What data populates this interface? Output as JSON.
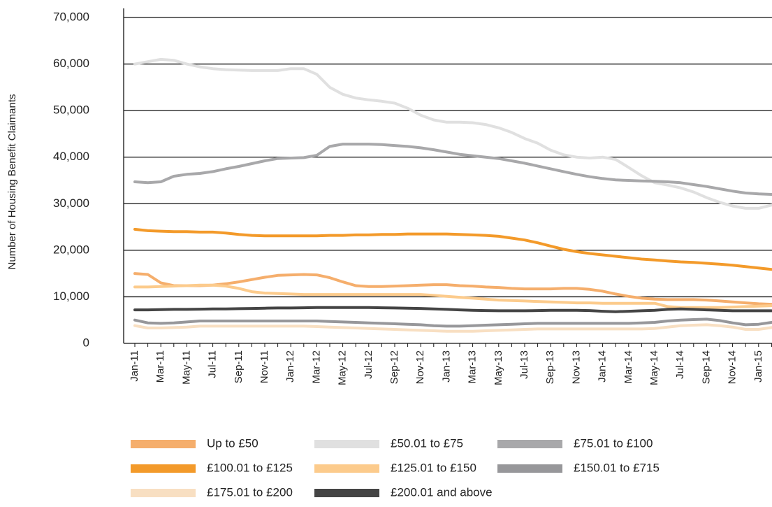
{
  "chart_data": {
    "type": "line",
    "y_label": "Number of Housing Benefit Claimants",
    "categories": [
      "Jan-11",
      null,
      "Mar-11",
      null,
      "May-11",
      null,
      "Jul-11",
      null,
      "Sep-11",
      null,
      "Nov-11",
      null,
      "Jan-12",
      null,
      "Mar-12",
      null,
      "May-12",
      null,
      "Jul-12",
      null,
      "Sep-12",
      null,
      "Nov-12",
      null,
      "Jan-13",
      null,
      "Mar-13",
      null,
      "May-13",
      null,
      "Jul-13",
      null,
      "Sep-13",
      null,
      "Nov-13",
      null,
      "Jan-14",
      null,
      "Mar-14",
      null,
      "May-14",
      null,
      "Jul-14",
      null,
      "Sep-14",
      null,
      "Nov-14",
      null,
      "Jan-15",
      null
    ],
    "ylim": [
      0,
      70000
    ],
    "yticks": [
      0,
      {
        "value": 10000,
        "label": "10,000"
      },
      {
        "value": 20000,
        "label": "20,000"
      },
      {
        "value": 30000,
        "label": "30,000"
      },
      {
        "value": 40000,
        "label": "40,000"
      },
      {
        "value": 50000,
        "label": "50,000"
      },
      {
        "value": 60000,
        "label": "60,000"
      },
      {
        "value": 70000,
        "label": "70,000"
      }
    ],
    "grid": true,
    "series": [
      {
        "name": "Up to £50",
        "color": "#f5ae6c",
        "values": [
          15000,
          14800,
          13000,
          12400,
          12400,
          12400,
          12500,
          12800,
          13200,
          13700,
          14200,
          14600,
          14700,
          14800,
          14700,
          14100,
          13200,
          12400,
          12200,
          12200,
          12300,
          12400,
          12500,
          12600,
          12600,
          12400,
          12300,
          12100,
          12000,
          11800,
          11700,
          11700,
          11700,
          11800,
          11800,
          11600,
          11200,
          10600,
          10100,
          9700,
          9500,
          9400,
          9400,
          9400,
          9300,
          9100,
          8900,
          8700,
          8500,
          8400
        ]
      },
      {
        "name": "£50.01 to £75",
        "color": "#e0e0e0",
        "values": [
          60000,
          60500,
          61000,
          60800,
          60000,
          59400,
          59000,
          58800,
          58700,
          58600,
          58600,
          58600,
          59000,
          59000,
          57800,
          55000,
          53500,
          52700,
          52300,
          52000,
          51600,
          50500,
          49000,
          48000,
          47500,
          47500,
          47400,
          47000,
          46300,
          45300,
          44000,
          43000,
          41500,
          40500,
          40000,
          39800,
          40000,
          39500,
          37800,
          36000,
          34500,
          34000,
          33400,
          32500,
          31300,
          30300,
          29500,
          29000,
          29000,
          29700
        ]
      },
      {
        "name": "£75.01 to £100",
        "color": "#a8a8aa",
        "values": [
          34700,
          34500,
          34700,
          35900,
          36300,
          36500,
          36900,
          37500,
          38000,
          38600,
          39200,
          39700,
          39800,
          39900,
          40400,
          42300,
          42800,
          42800,
          42800,
          42700,
          42500,
          42300,
          42000,
          41600,
          41100,
          40600,
          40300,
          40000,
          39700,
          39200,
          38700,
          38100,
          37500,
          36900,
          36300,
          35800,
          35400,
          35100,
          35000,
          34900,
          34800,
          34700,
          34500,
          34100,
          33700,
          33200,
          32700,
          32300,
          32100,
          32000
        ]
      },
      {
        "name": "£100.01 to £125",
        "color": "#f39a2a",
        "values": [
          24500,
          24200,
          24100,
          24000,
          24000,
          23900,
          23900,
          23700,
          23400,
          23200,
          23100,
          23100,
          23100,
          23100,
          23100,
          23200,
          23200,
          23300,
          23300,
          23400,
          23400,
          23500,
          23500,
          23500,
          23500,
          23400,
          23300,
          23200,
          23000,
          22600,
          22200,
          21600,
          20900,
          20200,
          19700,
          19300,
          19000,
          18700,
          18400,
          18100,
          17900,
          17700,
          17500,
          17400,
          17200,
          17000,
          16800,
          16500,
          16200,
          15900
        ]
      },
      {
        "name": "£125.01 to £150",
        "color": "#fccb8c",
        "values": [
          12100,
          12100,
          12200,
          12300,
          12400,
          12500,
          12500,
          12300,
          11800,
          11100,
          10800,
          10700,
          10600,
          10500,
          10500,
          10500,
          10500,
          10500,
          10500,
          10500,
          10500,
          10500,
          10500,
          10300,
          10100,
          9900,
          9700,
          9500,
          9300,
          9200,
          9100,
          9000,
          8900,
          8800,
          8700,
          8700,
          8600,
          8600,
          8600,
          8600,
          8600,
          7900,
          7700,
          7700,
          7700,
          7700,
          7800,
          7900,
          8000,
          8100
        ]
      },
      {
        "name": "£150.01 to £715",
        "color": "#97979a",
        "values": [
          5000,
          4400,
          4300,
          4400,
          4600,
          4800,
          4800,
          4800,
          4800,
          4800,
          4800,
          4800,
          4800,
          4800,
          4800,
          4700,
          4600,
          4500,
          4400,
          4300,
          4200,
          4100,
          4000,
          3800,
          3700,
          3700,
          3800,
          3900,
          4000,
          4100,
          4200,
          4300,
          4300,
          4300,
          4300,
          4300,
          4300,
          4300,
          4300,
          4400,
          4500,
          4800,
          5000,
          5100,
          5200,
          4900,
          4400,
          4000,
          4100,
          4500
        ]
      },
      {
        "name": "£175.01 to £200",
        "color": "#f8dfc2",
        "values": [
          3800,
          3300,
          3300,
          3400,
          3500,
          3700,
          3700,
          3700,
          3700,
          3700,
          3700,
          3700,
          3700,
          3700,
          3600,
          3500,
          3400,
          3300,
          3200,
          3100,
          3000,
          2900,
          2800,
          2700,
          2600,
          2600,
          2600,
          2700,
          2800,
          2900,
          3000,
          3100,
          3100,
          3100,
          3100,
          3100,
          3100,
          3100,
          3100,
          3100,
          3200,
          3500,
          3800,
          3900,
          4000,
          3800,
          3500,
          3000,
          3000,
          3400
        ]
      },
      {
        "name": "£200.01 and above",
        "color": "#444444",
        "values": [
          7200,
          7200,
          7250,
          7300,
          7300,
          7350,
          7400,
          7400,
          7450,
          7500,
          7550,
          7600,
          7600,
          7650,
          7700,
          7700,
          7700,
          7700,
          7700,
          7650,
          7600,
          7550,
          7500,
          7400,
          7300,
          7200,
          7100,
          7050,
          7000,
          7000,
          7000,
          7050,
          7100,
          7100,
          7100,
          7050,
          6900,
          6800,
          6900,
          7000,
          7100,
          7300,
          7400,
          7300,
          7200,
          7100,
          7000,
          7000,
          7000,
          7000
        ]
      }
    ]
  }
}
